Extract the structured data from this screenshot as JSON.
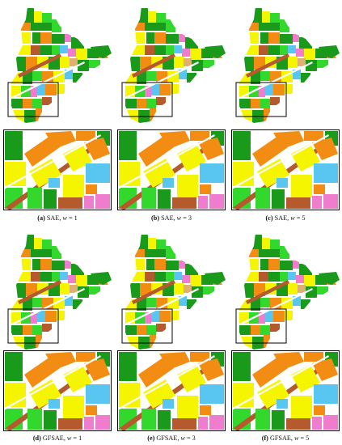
{
  "colors": {
    "green": "#199a1b",
    "bright_green": "#33d82d",
    "yellow": "#f5f500",
    "orange": "#f28c12",
    "brown": "#b55a2c",
    "cyan": "#58c6f0",
    "pink": "#ef7ccd",
    "tan": "#e0b073",
    "white": "#ffffff",
    "box": "#000000"
  },
  "panels": [
    {
      "tag": "(a)",
      "method": "SAE",
      "wlabel": "w",
      "eq": " = ",
      "wvalue": "1"
    },
    {
      "tag": "(b)",
      "method": "SAE",
      "wlabel": "w",
      "eq": " = ",
      "wvalue": "3"
    },
    {
      "tag": "(c)",
      "method": "SAE",
      "wlabel": "w",
      "eq": " = ",
      "wvalue": "5"
    },
    {
      "tag": "(d)",
      "method": "GFSAE",
      "wlabel": "w",
      "eq": " = ",
      "wvalue": "1"
    },
    {
      "tag": "(e)",
      "method": "GFSAE",
      "wlabel": "w",
      "eq": " = ",
      "wvalue": "3"
    },
    {
      "tag": "(f)",
      "method": "GFSAE",
      "wlabel": "w",
      "eq": " = ",
      "wvalue": "5"
    }
  ]
}
